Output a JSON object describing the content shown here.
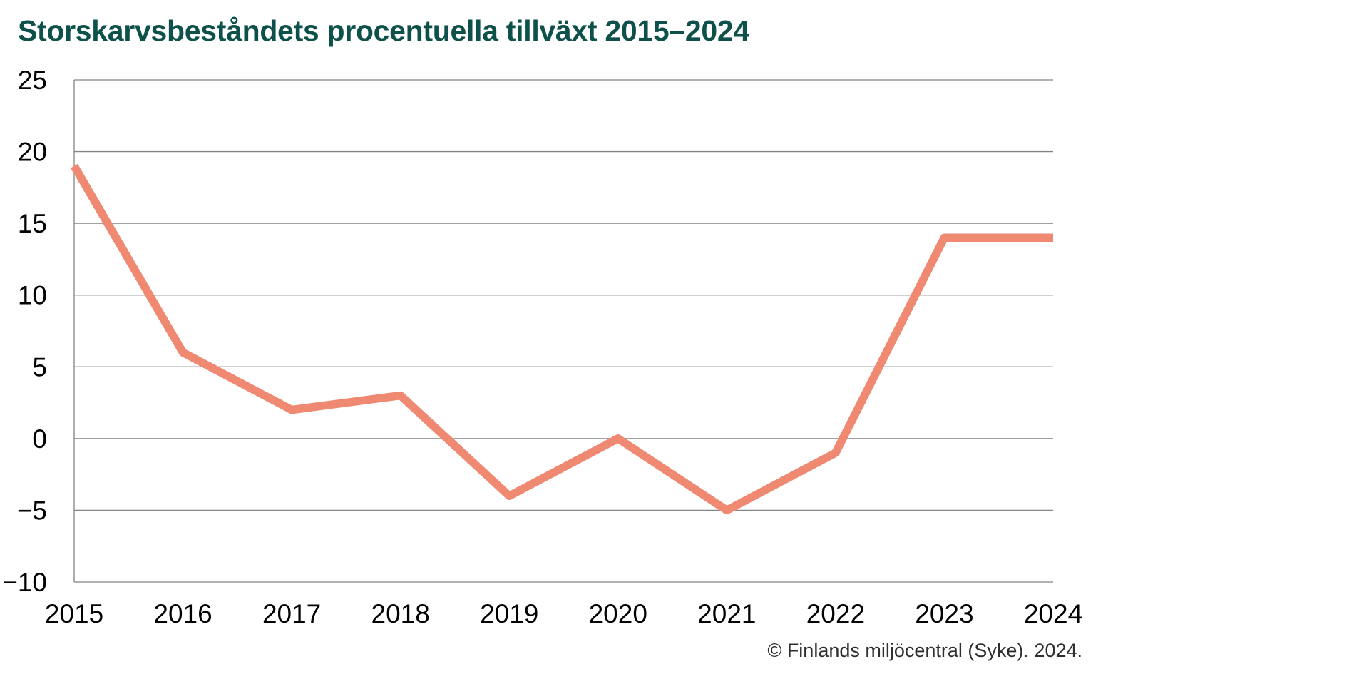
{
  "page": {
    "title": "Storskarvsbeståndets procentuella tillväxt 2015–2024",
    "attribution": "© Finlands miljöcentral (Syke). 2024."
  },
  "chart_data": {
    "type": "line",
    "title": "Storskarvsbeståndets procentuella tillväxt 2015–2024",
    "categories": [
      "2015",
      "2016",
      "2017",
      "2018",
      "2019",
      "2020",
      "2021",
      "2022",
      "2023",
      "2024"
    ],
    "values": [
      19,
      6,
      2,
      3,
      -4,
      0,
      -5,
      -1,
      14,
      14
    ],
    "xlabel": "",
    "ylabel": "",
    "ylim": [
      -10,
      25
    ],
    "yticks": [
      25,
      20,
      15,
      10,
      5,
      0,
      -5,
      -10
    ],
    "grid": true,
    "legend_position": "none",
    "line_color": "#EF8972",
    "grid_color": "#848484",
    "tick_label_color": "#000000",
    "title_color": "#0E514B",
    "attribution": "© Finlands miljöcentral (Syke). 2024.",
    "attribution_color": "#2E2E2E"
  }
}
